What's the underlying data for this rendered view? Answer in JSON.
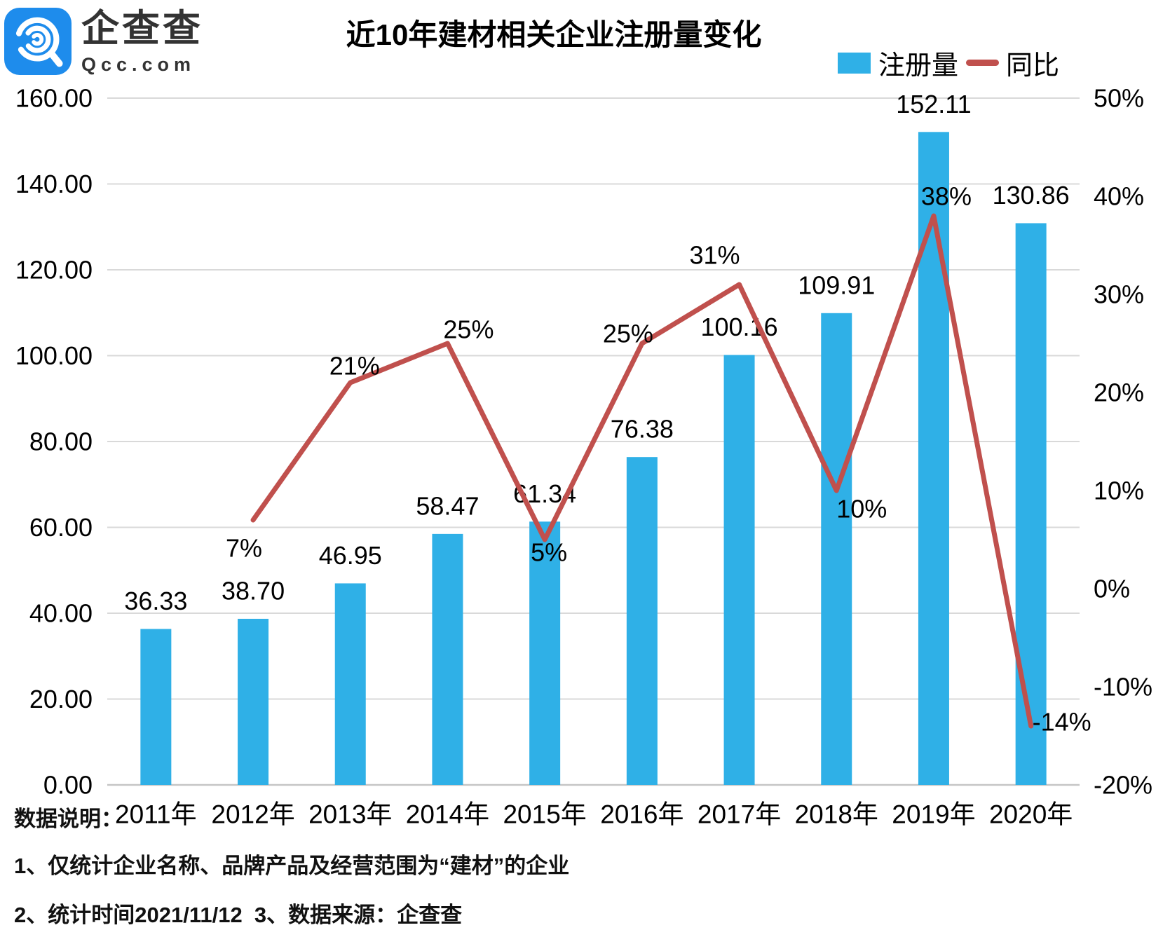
{
  "header": {
    "logo": {
      "brand_name": "企查查",
      "domain": "Qcc.com"
    },
    "title": "近10年建材相关企业注册量变化"
  },
  "legend": {
    "items": [
      {
        "label": "注册量",
        "type": "bar",
        "color": "#2FB0E7"
      },
      {
        "label": "同比",
        "type": "line",
        "color": "#C0504D"
      }
    ],
    "position": "top-right"
  },
  "notes": {
    "heading": "数据说明：",
    "line1": "1、仅统计企业名称、品牌产品及经营范围为“建材”的企业",
    "line2": "2、统计时间2021/11/12  3、数据来源：企查查"
  },
  "chart_data": {
    "type": "bar+line combo",
    "title": "近10年建材相关企业注册量变化",
    "categories": [
      "2011年",
      "2012年",
      "2013年",
      "2014年",
      "2015年",
      "2016年",
      "2017年",
      "2018年",
      "2019年",
      "2020年"
    ],
    "series": [
      {
        "name": "注册量",
        "type": "bar",
        "axis": "left",
        "color": "#2FB0E7",
        "values": [
          36.33,
          38.7,
          46.95,
          58.47,
          61.34,
          76.38,
          100.16,
          109.91,
          152.11,
          130.86
        ],
        "value_labels": [
          "36.33",
          "38.70",
          "46.95",
          "58.47",
          "61.34",
          "76.38",
          "100.16",
          "109.91",
          "152.11",
          "130.86"
        ]
      },
      {
        "name": "同比",
        "type": "line",
        "axis": "right",
        "color": "#C0504D",
        "unit": "%",
        "values": [
          null,
          7,
          21,
          25,
          5,
          25,
          31,
          10,
          38,
          -14
        ],
        "value_labels": [
          null,
          "7%",
          "21%",
          "25%",
          "5%",
          "25%",
          "31%",
          "10%",
          "38%",
          "-14%"
        ]
      }
    ],
    "left_axis": {
      "min": 0,
      "max": 160,
      "step": 20,
      "tick_labels": [
        "0.00",
        "20.00",
        "40.00",
        "60.00",
        "80.00",
        "100.00",
        "120.00",
        "140.00",
        "160.00"
      ]
    },
    "right_axis": {
      "min": -20,
      "max": 50,
      "step": 10,
      "tick_labels": [
        "-20%",
        "-10%",
        "0%",
        "10%",
        "20%",
        "30%",
        "40%",
        "50%"
      ]
    },
    "grid": "horizontal",
    "gridline_color": "#D9D9D9",
    "legend_position": "top-right"
  }
}
